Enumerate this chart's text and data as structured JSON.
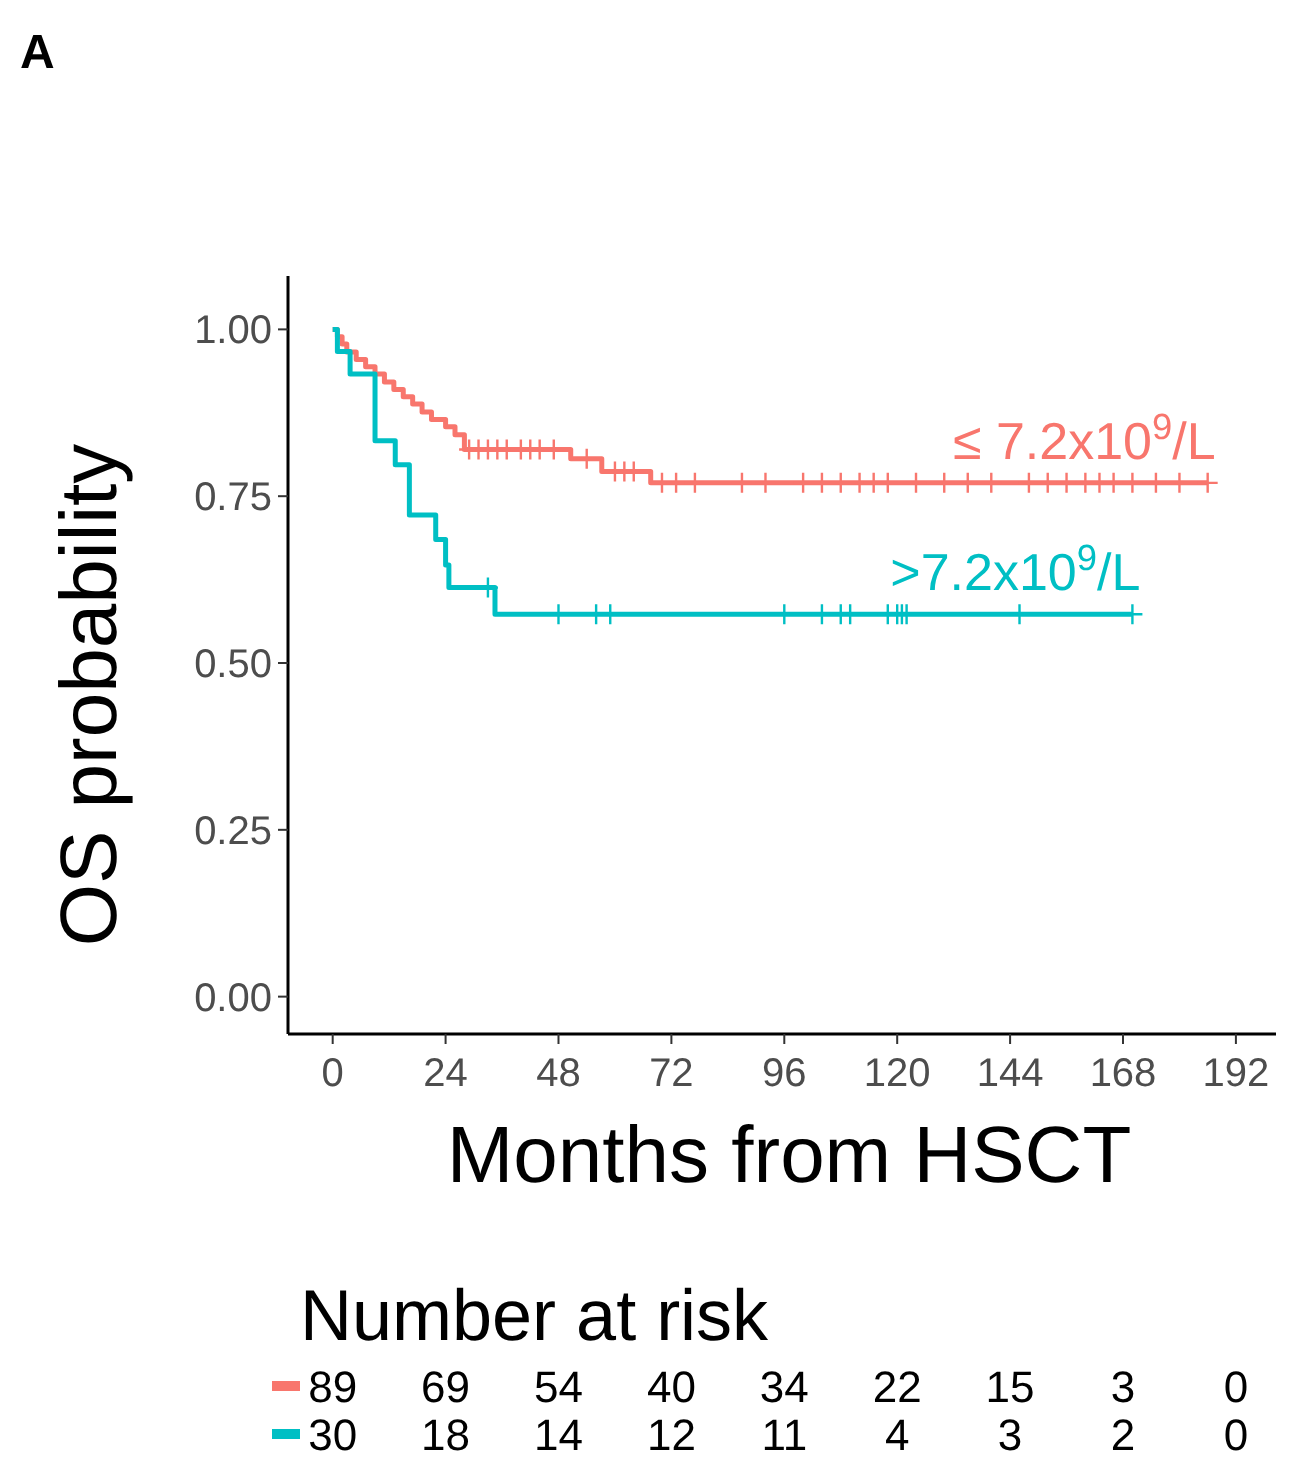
{
  "chart_data": {
    "type": "step",
    "title": "A",
    "xlabel": "Months from HSCT",
    "ylabel": "OS probability",
    "xlim": [
      -9.5,
      203.5
    ],
    "ylim": [
      -0.056,
      1.08
    ],
    "xticks": [
      0,
      24,
      48,
      72,
      96,
      120,
      144,
      168,
      192
    ],
    "yticks": [
      {
        "value": 0,
        "label": "0.00"
      },
      {
        "value": 0.25,
        "label": "0.25"
      },
      {
        "value": 0.5,
        "label": "0.50"
      },
      {
        "value": 0.75,
        "label": "0.75"
      },
      {
        "value": 1,
        "label": "1.00"
      }
    ],
    "grid": false,
    "series": [
      {
        "name": "≤ 7.2x10$^{9}$/L",
        "color": "#f8766d",
        "marker": "none",
        "x": [
          0,
          1,
          2,
          3,
          5,
          7,
          9,
          11,
          13,
          15,
          17,
          19,
          21,
          24,
          26,
          28,
          50.6,
          57.2,
          67.6,
          186
        ],
        "values": [
          1,
          0.989,
          0.978,
          0.966,
          0.955,
          0.944,
          0.933,
          0.921,
          0.91,
          0.899,
          0.888,
          0.876,
          0.865,
          0.854,
          0.842,
          0.82,
          0.806,
          0.787,
          0.77,
          0.77
        ]
      },
      {
        "name": ">7.2x10$^{9}$/L",
        "color": "#00bfc4",
        "marker": "none",
        "x": [
          0,
          1,
          3.7,
          9,
          13.3,
          16.3,
          21.9,
          24,
          24.7,
          34.5,
          170
        ],
        "values": [
          1,
          0.967,
          0.933,
          0.833,
          0.797,
          0.722,
          0.685,
          0.647,
          0.613,
          0.573,
          0.573
        ]
      },
      {
        "type": "scatter",
        "color": "#f8766d",
        "marker": "cross",
        "x": [
          29,
          31,
          33,
          35,
          37,
          40,
          42,
          44,
          47,
          54,
          60,
          62,
          64,
          70,
          73,
          77,
          87,
          92,
          100,
          104,
          108,
          112,
          115,
          118,
          124,
          130,
          135,
          140,
          148,
          152,
          156,
          160,
          163,
          166,
          170,
          175,
          180,
          186
        ],
        "values": [
          0.82,
          0.82,
          0.82,
          0.82,
          0.82,
          0.82,
          0.82,
          0.82,
          0.82,
          0.806,
          0.787,
          0.787,
          0.787,
          0.77,
          0.77,
          0.77,
          0.77,
          0.77,
          0.77,
          0.77,
          0.77,
          0.77,
          0.77,
          0.77,
          0.77,
          0.77,
          0.77,
          0.77,
          0.77,
          0.77,
          0.77,
          0.77,
          0.77,
          0.77,
          0.77,
          0.77,
          0.77,
          0.77
        ]
      },
      {
        "type": "scatter",
        "color": "#00bfc4",
        "marker": "cross",
        "x": [
          33,
          48,
          56,
          59,
          96,
          104,
          108,
          110,
          118,
          120,
          121,
          122,
          146,
          170
        ],
        "values": [
          0.613,
          0.573,
          0.573,
          0.573,
          0.573,
          0.573,
          0.573,
          0.573,
          0.573,
          0.573,
          0.573,
          0.573,
          0.573,
          0.573
        ]
      }
    ],
    "annotations": [
      "Number at risk",
      "89 69 54 40 34 22 15 3 0",
      "30 18 14 12 11 4 3 2 0"
    ]
  }
}
